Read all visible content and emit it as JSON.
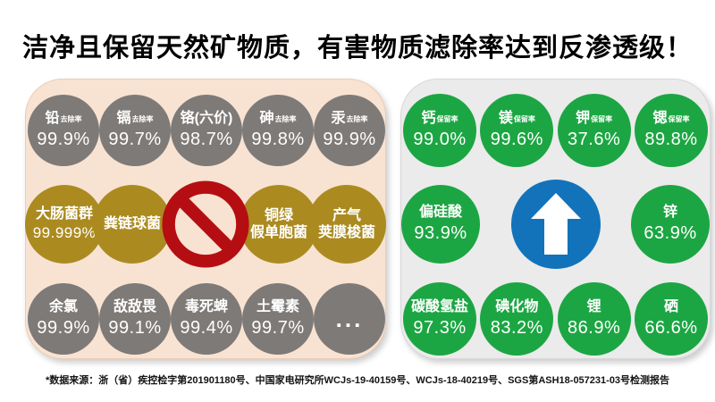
{
  "title": "洁净且保留天然矿物质，有害物质滤除率达到反渗透级！",
  "footnote": "*数据来源：浙（省）疾控检字第201901180号、中国家电研究所WCJs-19-40159号、WCJs-18-40219号、SGS第ASH18-057231-03号检测报告",
  "colors": {
    "gray_circle": "#7e7a78",
    "gold_circle": "#ab8b20",
    "green_circle": "#1ca643",
    "left_panel_bg": "#f8e3d2",
    "right_panel_bg": "#ebebeb",
    "prohibition_red": "#b50e12",
    "arrow_blue": "#1273ba"
  },
  "left_panel": {
    "theme": "removal",
    "rows": [
      {
        "style": "gray",
        "items": [
          {
            "label": "铅",
            "suffix": "去除率",
            "value": "99.9%"
          },
          {
            "label": "镉",
            "suffix": "去除率",
            "value": "99.7%"
          },
          {
            "label": "铬(六价)",
            "value": "98.7%"
          },
          {
            "label": "砷",
            "suffix": "去除率",
            "value": "99.8%"
          },
          {
            "label": "汞",
            "suffix": "去除率",
            "value": "99.9%"
          }
        ]
      },
      {
        "style": "gold",
        "items": [
          {
            "label": "大肠菌群",
            "value": "99.999%"
          },
          {
            "label": "粪链球菌"
          },
          {
            "icon": "prohibition"
          },
          {
            "label": "铜绿",
            "label2": "假单胞菌"
          },
          {
            "label": "产气",
            "label2": "荚膜梭菌"
          }
        ]
      },
      {
        "style": "gray",
        "items": [
          {
            "label": "余氯",
            "value": "99.9%"
          },
          {
            "label": "敌敌畏",
            "value": "99.1%"
          },
          {
            "label": "毒死蜱",
            "value": "99.4%"
          },
          {
            "label": "土霉素",
            "value": "99.7%"
          },
          {
            "label": "..."
          }
        ]
      }
    ]
  },
  "right_panel": {
    "theme": "retention",
    "rows": [
      {
        "style": "green",
        "items": [
          {
            "label": "钙",
            "suffix": "保留率",
            "value": "99.0%"
          },
          {
            "label": "镁",
            "suffix": "保留率",
            "value": "99.6%"
          },
          {
            "label": "钾",
            "suffix": "保留率",
            "value": "37.6%"
          },
          {
            "label": "锶",
            "suffix": "保留率",
            "value": "89.8%"
          }
        ]
      },
      {
        "style": "green-large",
        "items": [
          {
            "label": "偏硅酸",
            "value": "93.9%"
          },
          {
            "icon": "arrow-up"
          },
          {
            "label": "锌",
            "value": "63.9%"
          }
        ]
      },
      {
        "style": "green",
        "items": [
          {
            "label": "碳酸氢盐",
            "value": "97.3%"
          },
          {
            "label": "碘化物",
            "value": "83.2%"
          },
          {
            "label": "锂",
            "value": "86.9%"
          },
          {
            "label": "硒",
            "value": "66.6%"
          }
        ]
      }
    ]
  }
}
